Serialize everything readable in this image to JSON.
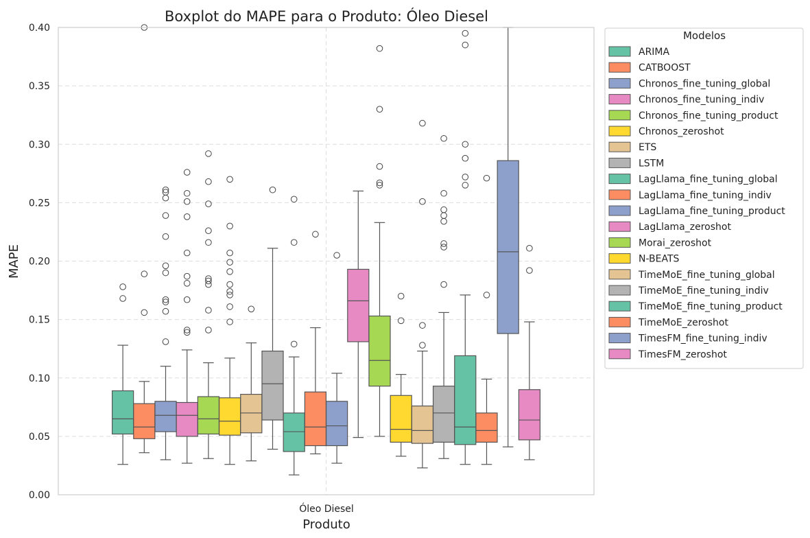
{
  "chart_data": {
    "type": "box",
    "title": "Boxplot do MAPE para o Produto: Óleo Diesel",
    "xlabel": "Produto",
    "ylabel": "MAPE",
    "category": "Óleo Diesel",
    "ylim": [
      0,
      0.4
    ],
    "yticks": [
      "0.00",
      "0.05",
      "0.10",
      "0.15",
      "0.20",
      "0.25",
      "0.30",
      "0.35",
      "0.40"
    ],
    "grid": true,
    "legend": {
      "title": "Modelos",
      "placement": "outside-right"
    },
    "series": [
      {
        "name": "ARIMA",
        "color": "#66c2a5",
        "whislo": 0.026,
        "q1": 0.052,
        "med": 0.065,
        "q3": 0.089,
        "whishi": 0.128,
        "fliers": [
          0.168,
          0.178
        ]
      },
      {
        "name": "CATBOOST",
        "color": "#fc8d62",
        "whislo": 0.036,
        "q1": 0.048,
        "med": 0.058,
        "q3": 0.078,
        "whishi": 0.097,
        "fliers": [
          0.156,
          0.189,
          0.4
        ]
      },
      {
        "name": "Chronos_fine_tuning_global",
        "color": "#8da0cb",
        "whislo": 0.03,
        "q1": 0.054,
        "med": 0.068,
        "q3": 0.08,
        "whishi": 0.11,
        "fliers": [
          0.131,
          0.157,
          0.165,
          0.167,
          0.19,
          0.196,
          0.221,
          0.239,
          0.254,
          0.259,
          0.261
        ]
      },
      {
        "name": "Chronos_fine_tuning_indiv",
        "color": "#e78ac3",
        "whislo": 0.027,
        "q1": 0.05,
        "med": 0.068,
        "q3": 0.079,
        "whishi": 0.124,
        "fliers": [
          0.139,
          0.141,
          0.167,
          0.181,
          0.187,
          0.207,
          0.238,
          0.251,
          0.258,
          0.276
        ]
      },
      {
        "name": "Chronos_fine_tuning_product",
        "color": "#a6d854",
        "whislo": 0.031,
        "q1": 0.052,
        "med": 0.065,
        "q3": 0.084,
        "whishi": 0.113,
        "fliers": [
          0.141,
          0.158,
          0.18,
          0.183,
          0.185,
          0.216,
          0.226,
          0.249,
          0.268,
          0.292
        ]
      },
      {
        "name": "Chronos_zeroshot",
        "color": "#ffd92f",
        "whislo": 0.026,
        "q1": 0.051,
        "med": 0.063,
        "q3": 0.083,
        "whishi": 0.117,
        "fliers": [
          0.148,
          0.161,
          0.171,
          0.174,
          0.18,
          0.191,
          0.199,
          0.207,
          0.23,
          0.27
        ]
      },
      {
        "name": "ETS",
        "color": "#e5c494",
        "whislo": 0.029,
        "q1": 0.053,
        "med": 0.07,
        "q3": 0.086,
        "whishi": 0.13,
        "fliers": [
          0.159
        ]
      },
      {
        "name": "LSTM",
        "color": "#b3b3b3",
        "whislo": 0.039,
        "q1": 0.064,
        "med": 0.095,
        "q3": 0.123,
        "whishi": 0.211,
        "fliers": [
          0.261
        ]
      },
      {
        "name": "LagLlama_fine_tuning_global",
        "color": "#66c2a5",
        "whislo": 0.017,
        "q1": 0.037,
        "med": 0.054,
        "q3": 0.07,
        "whishi": 0.118,
        "fliers": [
          0.129,
          0.216,
          0.253
        ]
      },
      {
        "name": "LagLlama_fine_tuning_indiv",
        "color": "#fc8d62",
        "whislo": 0.035,
        "q1": 0.042,
        "med": 0.058,
        "q3": 0.088,
        "whishi": 0.143,
        "fliers": [
          0.223
        ]
      },
      {
        "name": "LagLlama_fine_tuning_product",
        "color": "#8da0cb",
        "whislo": 0.027,
        "q1": 0.042,
        "med": 0.059,
        "q3": 0.08,
        "whishi": 0.104,
        "fliers": [
          0.205
        ]
      },
      {
        "name": "LagLlama_zeroshot",
        "color": "#e78ac3",
        "whislo": 0.049,
        "q1": 0.131,
        "med": 0.166,
        "q3": 0.193,
        "whishi": 0.26,
        "fliers": []
      },
      {
        "name": "Morai_zeroshot",
        "color": "#a6d854",
        "whislo": 0.05,
        "q1": 0.093,
        "med": 0.115,
        "q3": 0.153,
        "whishi": 0.233,
        "fliers": [
          0.265,
          0.267,
          0.281,
          0.33,
          0.382
        ]
      },
      {
        "name": "N-BEATS",
        "color": "#ffd92f",
        "whislo": 0.033,
        "q1": 0.045,
        "med": 0.056,
        "q3": 0.085,
        "whishi": 0.103,
        "fliers": [
          0.149,
          0.17
        ]
      },
      {
        "name": "TimeMoE_fine_tuning_global",
        "color": "#e5c494",
        "whislo": 0.023,
        "q1": 0.044,
        "med": 0.055,
        "q3": 0.076,
        "whishi": 0.123,
        "fliers": [
          0.128,
          0.145,
          0.251,
          0.318
        ]
      },
      {
        "name": "TimeMoE_fine_tuning_indiv",
        "color": "#b3b3b3",
        "whislo": 0.031,
        "q1": 0.045,
        "med": 0.07,
        "q3": 0.093,
        "whishi": 0.156,
        "fliers": [
          0.18,
          0.212,
          0.215,
          0.234,
          0.239,
          0.244,
          0.258,
          0.305
        ]
      },
      {
        "name": "TimeMoE_fine_tuning_product",
        "color": "#66c2a5",
        "whislo": 0.026,
        "q1": 0.043,
        "med": 0.058,
        "q3": 0.119,
        "whishi": 0.171,
        "fliers": [
          0.265,
          0.272,
          0.288,
          0.3,
          0.385,
          0.395
        ]
      },
      {
        "name": "TimeMoE_zeroshot",
        "color": "#fc8d62",
        "whislo": 0.026,
        "q1": 0.045,
        "med": 0.055,
        "q3": 0.07,
        "whishi": 0.099,
        "fliers": [
          0.171,
          0.271
        ]
      },
      {
        "name": "TimesFM_fine_tuning_indiv",
        "color": "#8da0cb",
        "whislo": 0.041,
        "q1": 0.138,
        "med": 0.208,
        "q3": 0.286,
        "whishi": 0.4,
        "fliers": []
      },
      {
        "name": "TimesFM_zeroshot",
        "color": "#e78ac3",
        "whislo": 0.03,
        "q1": 0.047,
        "med": 0.064,
        "q3": 0.09,
        "whishi": 0.148,
        "fliers": [
          0.192,
          0.211
        ]
      }
    ]
  }
}
